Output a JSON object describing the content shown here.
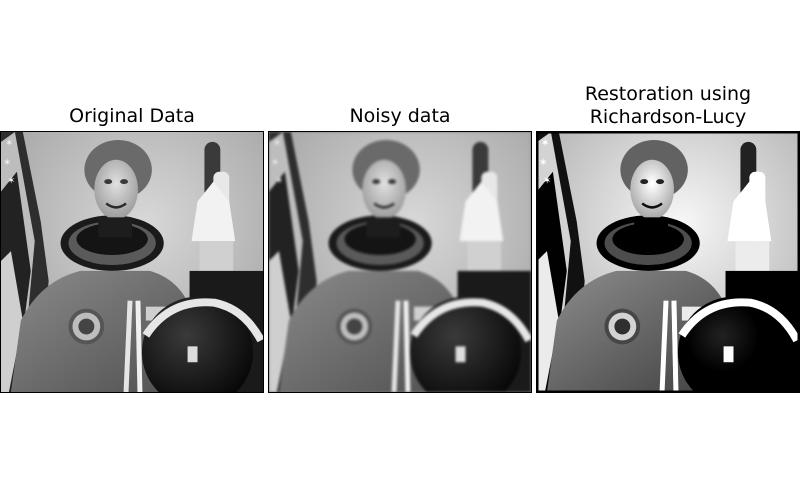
{
  "figure": {
    "panels": [
      {
        "title": "Original Data"
      },
      {
        "title": "Noisy data"
      },
      {
        "title": "Restoration using\nRichardson-Lucy"
      }
    ],
    "colormap": "gray"
  }
}
